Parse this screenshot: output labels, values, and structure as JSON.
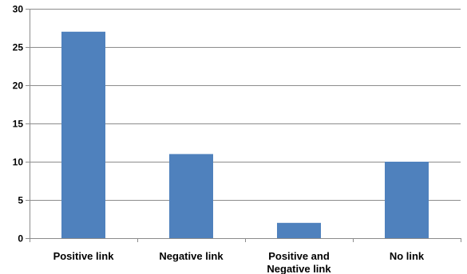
{
  "chart_data": {
    "type": "bar",
    "categories": [
      "Positive link",
      "Negative link",
      "Positive and Negative link",
      "No link"
    ],
    "category_lines": [
      [
        "Positive link"
      ],
      [
        "Negative link"
      ],
      [
        "Positive and",
        "Negative link"
      ],
      [
        "No link"
      ]
    ],
    "values": [
      27,
      11,
      2,
      10
    ],
    "title": "",
    "xlabel": "",
    "ylabel": "",
    "ylim": [
      0,
      30
    ],
    "yticks": [
      0,
      5,
      10,
      15,
      20,
      25,
      30
    ],
    "grid": true,
    "legend": "none",
    "colors": {
      "bar": "#4F81BD",
      "grid": "#8C8C8C",
      "axis": "#8C8C8C"
    }
  }
}
